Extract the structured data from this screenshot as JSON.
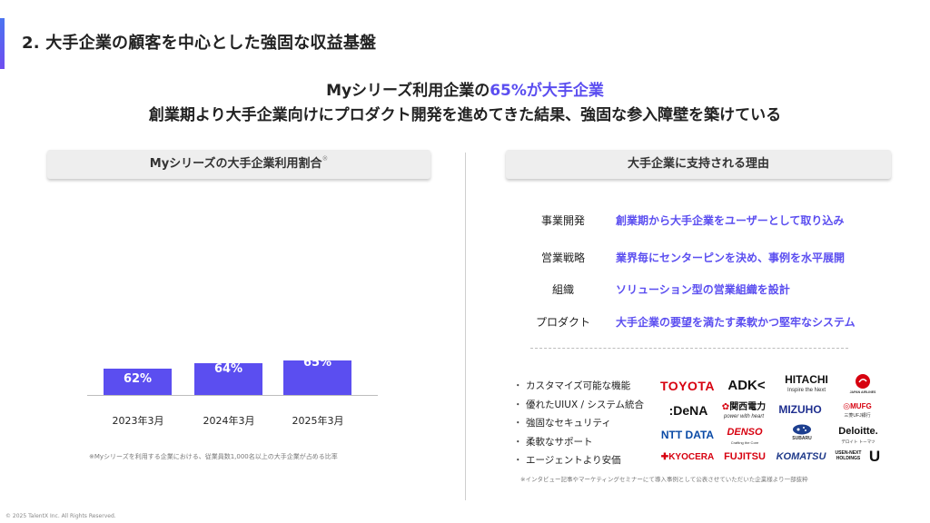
{
  "slide": {
    "title": "2. 大手企業の顧客を中心とした強固な収益基盤",
    "headline_prefix": "Myシリーズ利用企業の",
    "headline_highlight": "65%が大手企業",
    "subheadline": "創業期より大手企業向けにプロダクト開発を進めてきた結果、強固な参入障壁を築けている",
    "accent_color": "#5b4ef0"
  },
  "left_panel": {
    "header": "Myシリーズの大手企業利用割合",
    "header_mark": "※",
    "footnote": "※Myシリーズを利用する企業における、従業員数1,000名以上の大手企業が占める比率"
  },
  "chart_data": {
    "type": "bar",
    "categories": [
      "2023年3月",
      "2024年3月",
      "2025年3月"
    ],
    "values": [
      62,
      64,
      65
    ],
    "value_labels": [
      "62%",
      "64%",
      "65%"
    ],
    "bar_color": "#5b4ef0"
  },
  "right_panel": {
    "header": "大手企業に支持される理由",
    "reasons": [
      {
        "key": "事業開発",
        "value": "創業期から大手企業をユーザーとして取り込み"
      },
      {
        "key": "営業戦略",
        "value": "業界毎にセンターピンを決め、事例を水平展開"
      },
      {
        "key": "組織",
        "value": "ソリューション型の営業組織を設計"
      },
      {
        "key": "プロダクト",
        "value": "大手企業の要望を満たす柔軟かつ堅牢なシステム"
      }
    ],
    "bullet": "・",
    "features": [
      "カスタマイズ可能な機能",
      "優れたUIUX / システム統合",
      "強固なセキュリティ",
      "柔軟なサポート",
      "エージェントより安価"
    ],
    "logos": [
      {
        "text": "TOYOTA",
        "sub": ""
      },
      {
        "text": "ADK",
        "sub": ""
      },
      {
        "text": "HITACHI",
        "sub": "Inspire the Next"
      },
      {
        "text": "JAPAN AIRLINES",
        "sub": ""
      },
      {
        "text": "DeNA",
        "sub": ""
      },
      {
        "text": "関西電力",
        "sub": "power with heart"
      },
      {
        "text": "MIZUHO",
        "sub": ""
      },
      {
        "text": "MUFG",
        "sub": "三菱UFJ銀行"
      },
      {
        "text": "NTT DATA",
        "sub": ""
      },
      {
        "text": "DENSO",
        "sub": "Crafting the Core"
      },
      {
        "text": "SUBARU",
        "sub": ""
      },
      {
        "text": "Deloitte.",
        "sub": "デロイト トーマツ"
      },
      {
        "text": "KYOCERA",
        "sub": ""
      },
      {
        "text": "FUJITSU",
        "sub": ""
      },
      {
        "text": "KOMATSU",
        "sub": ""
      },
      {
        "text": "USEN-NEXT HOLDINGS",
        "sub": ""
      },
      {
        "text": "U",
        "sub": ""
      }
    ],
    "footnote": "※インタビュー記事やマーケティングセミナーにて導入事例として公表させていただいた企業様より一部抜粋"
  },
  "footer": {
    "copyright": "© 2025 TalentX Inc. All Rights Reserved."
  }
}
